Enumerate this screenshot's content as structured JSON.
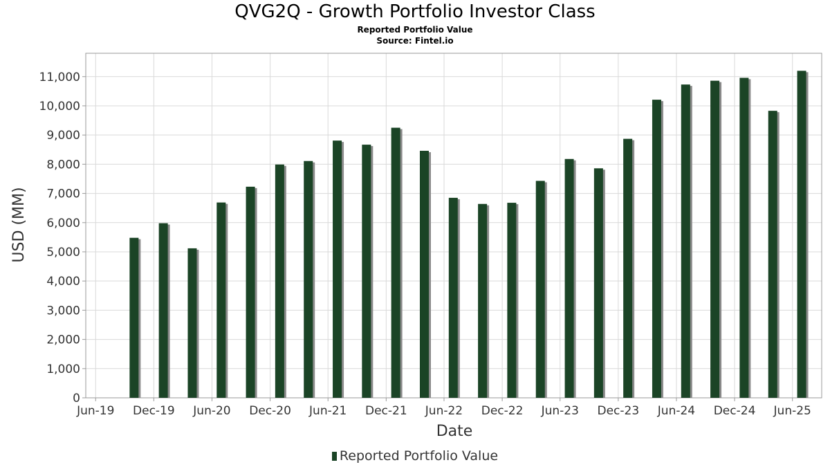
{
  "colors": {
    "bar": "#1b4426",
    "shadow": "#8a8a8a",
    "grid": "#d9d9d9",
    "axis": "#999999"
  },
  "chart_data": {
    "type": "bar",
    "title": "QVG2Q - Growth Portfolio Investor Class",
    "subtitle": "Reported Portfolio Value",
    "source": "Source: Fintel.io",
    "xlabel": "Date",
    "ylabel": "USD (MM)",
    "ylim": [
      0,
      11800
    ],
    "xlim": [
      "2019-05-01",
      "2025-09-01"
    ],
    "yticks": [
      0,
      1000,
      2000,
      3000,
      4000,
      5000,
      6000,
      7000,
      8000,
      9000,
      10000,
      11000
    ],
    "ytick_labels": [
      "0",
      "1,000",
      "2,000",
      "3,000",
      "4,000",
      "5,000",
      "6,000",
      "7,000",
      "8,000",
      "9,000",
      "10,000",
      "11,000"
    ],
    "xticks": [
      "2019-06-01",
      "2019-12-01",
      "2020-06-01",
      "2020-12-01",
      "2021-06-01",
      "2021-12-01",
      "2022-06-01",
      "2022-12-01",
      "2023-06-01",
      "2023-12-01",
      "2024-06-01",
      "2024-12-01",
      "2025-06-01"
    ],
    "xtick_labels": [
      "Jun-19",
      "Dec-19",
      "Jun-20",
      "Dec-20",
      "Jun-21",
      "Dec-21",
      "Jun-22",
      "Dec-22",
      "Jun-23",
      "Dec-23",
      "Jun-24",
      "Dec-24",
      "Jun-25"
    ],
    "grid": true,
    "legend_position": "bottom",
    "series": [
      {
        "name": "Reported Portfolio Value",
        "dates": [
          "2019-09-30",
          "2019-12-31",
          "2020-03-31",
          "2020-06-30",
          "2020-09-30",
          "2020-12-31",
          "2021-03-31",
          "2021-06-30",
          "2021-09-30",
          "2021-12-31",
          "2022-03-31",
          "2022-06-30",
          "2022-09-30",
          "2022-12-31",
          "2023-03-31",
          "2023-06-30",
          "2023-09-30",
          "2023-12-31",
          "2024-03-31",
          "2024-06-30",
          "2024-09-30",
          "2024-12-31",
          "2025-03-31",
          "2025-06-30"
        ],
        "values": [
          5480,
          5980,
          5120,
          6690,
          7230,
          7990,
          8110,
          8810,
          8670,
          9250,
          8460,
          6850,
          6640,
          6680,
          7430,
          8180,
          7860,
          8870,
          10210,
          10730,
          10860,
          10960,
          9830,
          11200
        ]
      }
    ]
  }
}
